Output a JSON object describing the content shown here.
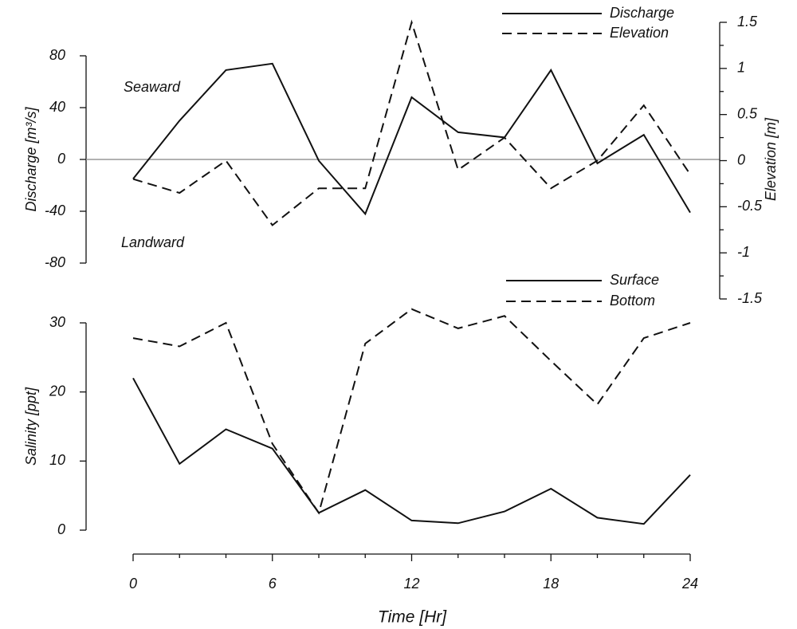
{
  "chart_data": [
    {
      "type": "line",
      "ylabel": "Discharge [m³/s]",
      "y2label": "Elevation [m]",
      "annotations": [
        "Seaward",
        "Landward"
      ],
      "x": [
        0,
        2,
        4,
        6,
        8,
        10,
        12,
        14,
        16,
        18,
        20,
        22,
        24
      ],
      "xlim": [
        0,
        24
      ],
      "ylim": [
        -80,
        80
      ],
      "yticks": [
        -80,
        -40,
        0,
        40,
        80
      ],
      "y2lim": [
        -1.5,
        1.5
      ],
      "y2ticks": [
        -1.5,
        -1,
        -0.5,
        0,
        0.5,
        1,
        1.5
      ],
      "zero_line": true,
      "series": [
        {
          "name": "Discharge",
          "color": "#111111",
          "dash": false,
          "values": [
            -15,
            30,
            69,
            74,
            -1,
            -42,
            48,
            21,
            17,
            69,
            -3,
            19,
            -41
          ]
        },
        {
          "name": "Elevation",
          "color": "#111111",
          "dash": true,
          "axis": "y2",
          "values": [
            -0.2,
            -0.35,
            0,
            -0.7,
            -0.3,
            -0.3,
            1.5,
            -0.1,
            0.25,
            -0.3,
            0,
            0.6,
            -0.15
          ]
        }
      ]
    },
    {
      "type": "line",
      "ylabel": "Salinity [ppt]",
      "xlabel": "Time [Hr]",
      "x": [
        0,
        2,
        4,
        6,
        8,
        10,
        12,
        14,
        16,
        18,
        20,
        22,
        24
      ],
      "xlim": [
        0,
        24
      ],
      "xticks": [
        0,
        6,
        12,
        18,
        24
      ],
      "ylim": [
        0,
        30
      ],
      "yticks": [
        0,
        10,
        20,
        30
      ],
      "series": [
        {
          "name": "Surface",
          "color": "#111111",
          "dash": false,
          "values": [
            22,
            9.6,
            14.6,
            11.8,
            2.5,
            5.8,
            1.4,
            1,
            2.7,
            6,
            1.8,
            0.9,
            8
          ]
        },
        {
          "name": "Bottom",
          "color": "#111111",
          "dash": true,
          "values": [
            27.8,
            26.6,
            30,
            12.5,
            2.5,
            27,
            32,
            29.2,
            31,
            24.5,
            18.2,
            27.8,
            30
          ]
        }
      ]
    }
  ]
}
